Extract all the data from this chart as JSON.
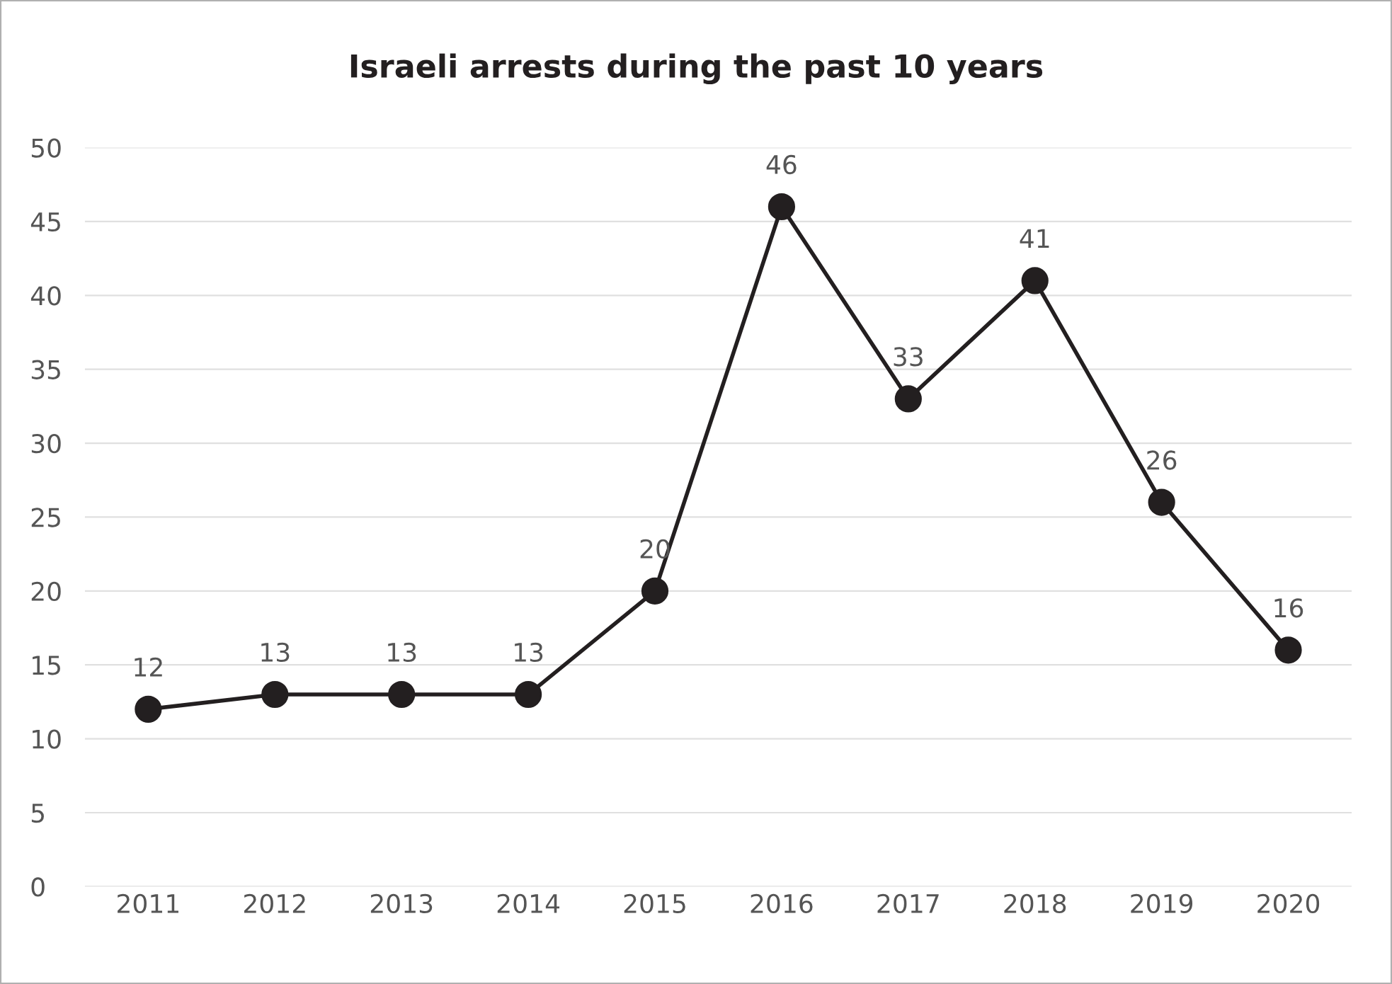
{
  "chart_data": {
    "type": "line",
    "title": "Israeli arrests during the past 10 years",
    "categories": [
      "2011",
      "2012",
      "2013",
      "2014",
      "2015",
      "2016",
      "2017",
      "2018",
      "2019",
      "2020"
    ],
    "values": [
      12,
      13,
      13,
      13,
      20,
      46,
      33,
      41,
      26,
      16
    ],
    "color": "#231f20",
    "marker": "circle",
    "line_style": "solid",
    "data_labels": true,
    "ylim": [
      0,
      50
    ],
    "yticks": [
      0,
      5,
      10,
      15,
      20,
      25,
      30,
      35,
      40,
      45,
      50
    ],
    "grid": "y"
  }
}
